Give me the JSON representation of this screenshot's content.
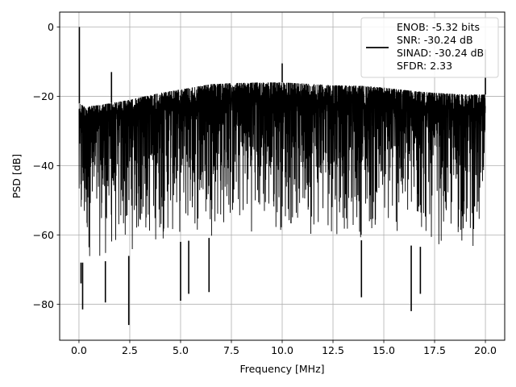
{
  "chart_data": {
    "type": "line",
    "title": "",
    "xlabel": "Frequency [MHz]",
    "ylabel": "PSD [dB]",
    "xlim": [
      -0.95,
      20.95
    ],
    "ylim": [
      -90.4,
      4.3
    ],
    "xticks": [
      0.0,
      2.5,
      5.0,
      7.5,
      10.0,
      12.5,
      15.0,
      17.5,
      20.0
    ],
    "xtick_labels": [
      "0.0",
      "2.5",
      "5.0",
      "7.5",
      "10.0",
      "12.5",
      "15.0",
      "17.5",
      "20.0"
    ],
    "yticks": [
      0,
      -20,
      -40,
      -60,
      -80
    ],
    "ytick_labels": [
      "0",
      "−20",
      "−40",
      "−60",
      "−80"
    ],
    "grid": true,
    "legend_position": "top-right",
    "legend_lines": [
      "ENOB: -5.32 bits",
      "SNR: -30.24 dB",
      "SINAD: -30.24 dB",
      "SFDR: 2.33"
    ],
    "series": [
      {
        "color": "#000000",
        "x_range": [
          0,
          20
        ],
        "upper_envelope": [
          [
            0,
            -22
          ],
          [
            0.3,
            -23
          ],
          [
            1,
            -22.5
          ],
          [
            2.5,
            -21
          ],
          [
            4,
            -19
          ],
          [
            5,
            -18
          ],
          [
            6.5,
            -16.5
          ],
          [
            7.5,
            -16.2
          ],
          [
            9,
            -16
          ],
          [
            10,
            -16
          ],
          [
            11,
            -16.3
          ],
          [
            12.5,
            -16.8
          ],
          [
            14,
            -17
          ],
          [
            15,
            -17.5
          ],
          [
            16.5,
            -18.5
          ],
          [
            17.5,
            -19
          ],
          [
            19,
            -19.5
          ],
          [
            20,
            -19.5
          ]
        ],
        "lower_envelope": [
          [
            0,
            -68
          ],
          [
            1,
            -68
          ],
          [
            2.5,
            -66
          ],
          [
            4,
            -63
          ],
          [
            5,
            -62
          ],
          [
            7.5,
            -60
          ],
          [
            10,
            -60
          ],
          [
            12.5,
            -61
          ],
          [
            15,
            -62
          ],
          [
            17.5,
            -64
          ],
          [
            20,
            -65
          ]
        ],
        "spikes": [
          [
            0.02,
            0.0
          ],
          [
            1.6,
            -13
          ],
          [
            10.0,
            -10.5
          ],
          [
            20.0,
            -6.5
          ]
        ],
        "dips": [
          [
            0.1,
            -74
          ],
          [
            0.18,
            -81.5
          ],
          [
            1.3,
            -79.5
          ],
          [
            2.45,
            -86
          ],
          [
            5.0,
            -79
          ],
          [
            5.4,
            -77
          ],
          [
            6.4,
            -76.5
          ],
          [
            13.9,
            -78
          ],
          [
            16.35,
            -82
          ],
          [
            16.8,
            -77
          ]
        ]
      }
    ]
  }
}
